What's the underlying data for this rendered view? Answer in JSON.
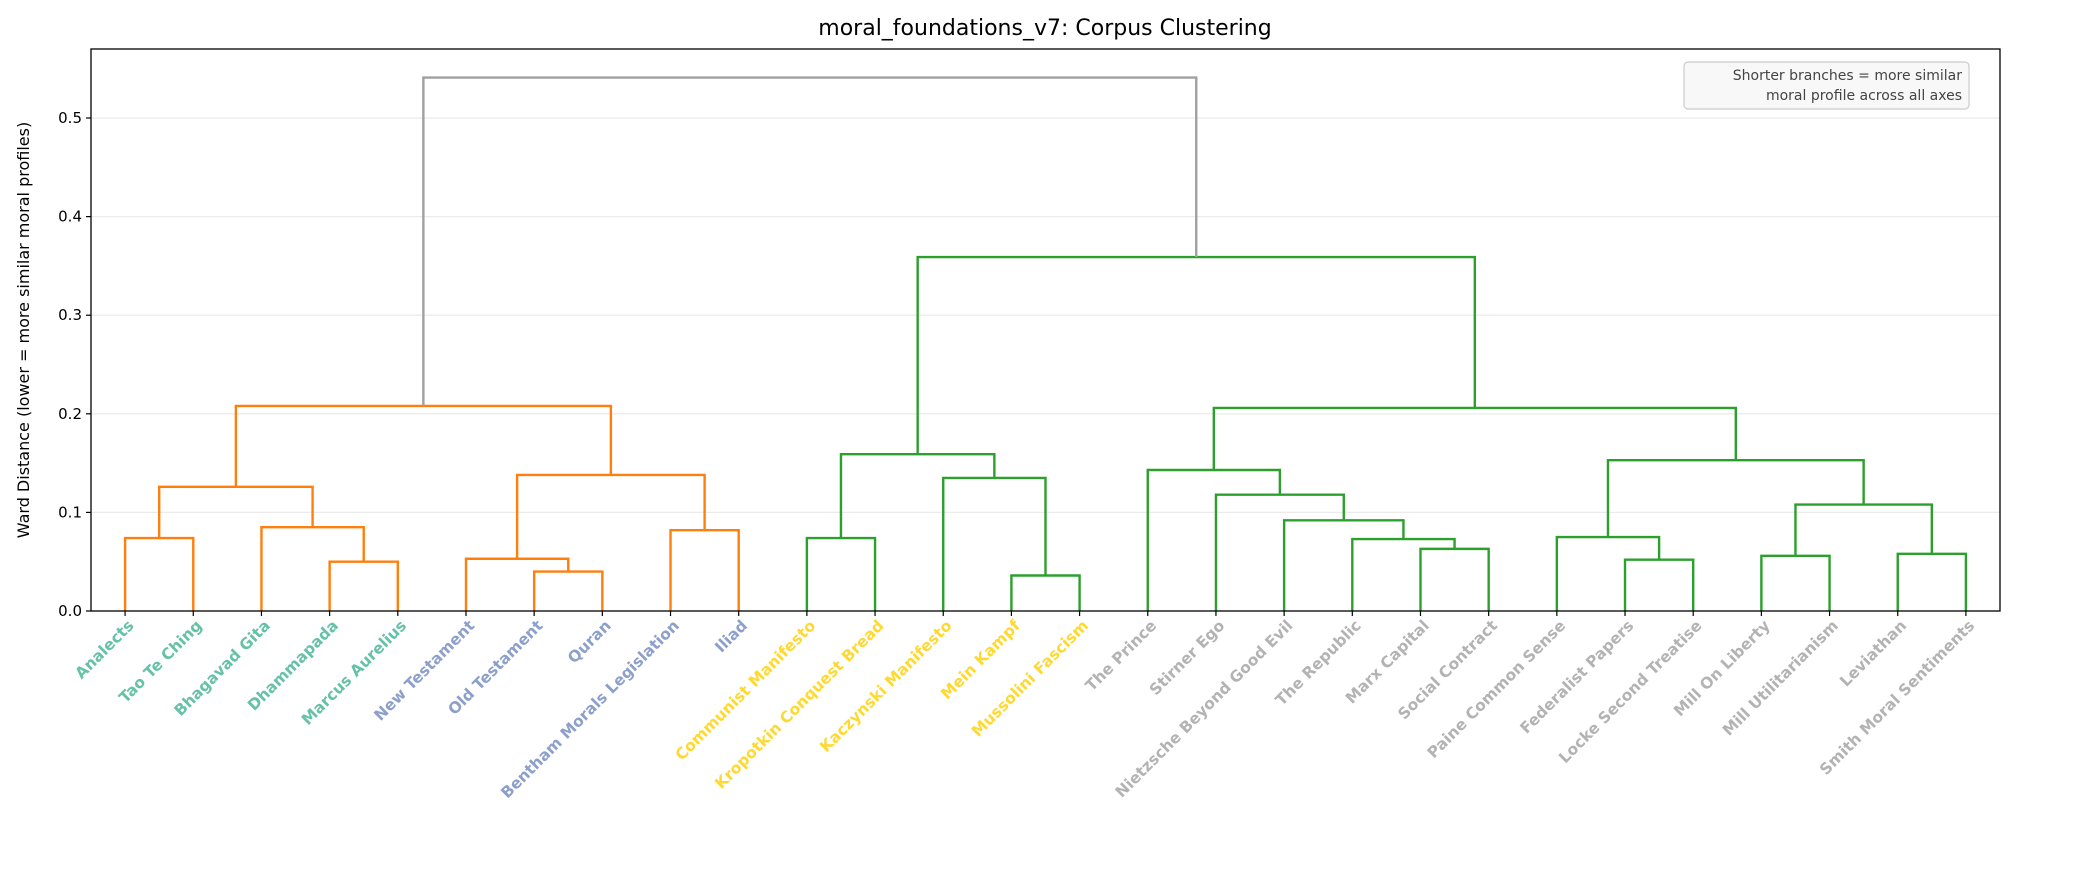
{
  "chart_data": {
    "type": "dendrogram",
    "title": "moral_foundations_v7: Corpus Clustering",
    "xlabel": "",
    "ylabel": "Ward Distance (lower = more similar moral profiles)",
    "ylim": [
      0,
      0.57
    ],
    "yticks": [
      "0.0",
      "0.1",
      "0.2",
      "0.3",
      "0.4",
      "0.5"
    ],
    "grid": "horizontal",
    "annotation": {
      "lines": [
        "Shorter branches = more similar",
        "moral profile across all axes"
      ],
      "placement": "top-right"
    },
    "link_colors": {
      "root": "#a0a0a0",
      "cluster_1": "#ff7f0e",
      "cluster_2": "#2ca02c"
    },
    "leaves": [
      {
        "label": "Analects",
        "color": "#66c2a5"
      },
      {
        "label": "Tao Te Ching",
        "color": "#66c2a5"
      },
      {
        "label": "Bhagavad Gita",
        "color": "#66c2a5"
      },
      {
        "label": "Dhammapada",
        "color": "#66c2a5"
      },
      {
        "label": "Marcus Aurelius",
        "color": "#66c2a5"
      },
      {
        "label": "New Testament",
        "color": "#8da0cb"
      },
      {
        "label": "Old Testament",
        "color": "#8da0cb"
      },
      {
        "label": "Quran",
        "color": "#8da0cb"
      },
      {
        "label": "Bentham Morals Legislation",
        "color": "#8da0cb"
      },
      {
        "label": "Iliad",
        "color": "#8da0cb"
      },
      {
        "label": "Communist Manifesto",
        "color": "#ffd92f"
      },
      {
        "label": "Kropotkin Conquest Bread",
        "color": "#ffd92f"
      },
      {
        "label": "Kaczynski Manifesto",
        "color": "#ffd92f"
      },
      {
        "label": "Mein Kampf",
        "color": "#ffd92f"
      },
      {
        "label": "Mussolini Fascism",
        "color": "#ffd92f"
      },
      {
        "label": "The Prince",
        "color": "#b3b3b3"
      },
      {
        "label": "Stirner Ego",
        "color": "#b3b3b3"
      },
      {
        "label": "Nietzsche Beyond Good Evil",
        "color": "#b3b3b3"
      },
      {
        "label": "The Republic",
        "color": "#b3b3b3"
      },
      {
        "label": "Marx Capital",
        "color": "#b3b3b3"
      },
      {
        "label": "Social Contract",
        "color": "#b3b3b3"
      },
      {
        "label": "Paine Common Sense",
        "color": "#b3b3b3"
      },
      {
        "label": "Federalist Papers",
        "color": "#b3b3b3"
      },
      {
        "label": "Locke Second Treatise",
        "color": "#b3b3b3"
      },
      {
        "label": "Mill On Liberty",
        "color": "#b3b3b3"
      },
      {
        "label": "Mill Utilitarianism",
        "color": "#b3b3b3"
      },
      {
        "label": "Leviathan",
        "color": "#b3b3b3"
      },
      {
        "label": "Smith Moral Sentiments",
        "color": "#b3b3b3"
      }
    ],
    "tree": {
      "h": 0.541,
      "color": "root",
      "children": [
        {
          "h": 0.208,
          "color": "cluster_1",
          "children": [
            {
              "h": 0.126,
              "color": "cluster_1",
              "children": [
                {
                  "h": 0.074,
                  "color": "cluster_1",
                  "children": [
                    0,
                    1
                  ]
                },
                {
                  "h": 0.085,
                  "color": "cluster_1",
                  "children": [
                    2,
                    {
                      "h": 0.05,
                      "color": "cluster_1",
                      "children": [
                        3,
                        4
                      ]
                    }
                  ]
                }
              ]
            },
            {
              "h": 0.138,
              "color": "cluster_1",
              "children": [
                {
                  "h": 0.053,
                  "color": "cluster_1",
                  "children": [
                    5,
                    {
                      "h": 0.04,
                      "color": "cluster_1",
                      "children": [
                        6,
                        7
                      ]
                    }
                  ]
                },
                {
                  "h": 0.082,
                  "color": "cluster_1",
                  "children": [
                    8,
                    9
                  ]
                }
              ]
            }
          ]
        },
        {
          "h": 0.359,
          "color": "cluster_2",
          "children": [
            {
              "h": 0.159,
              "color": "cluster_2",
              "children": [
                {
                  "h": 0.074,
                  "color": "cluster_2",
                  "children": [
                    10,
                    11
                  ]
                },
                {
                  "h": 0.135,
                  "color": "cluster_2",
                  "children": [
                    12,
                    {
                      "h": 0.036,
                      "color": "cluster_2",
                      "children": [
                        13,
                        14
                      ]
                    }
                  ]
                }
              ]
            },
            {
              "h": 0.206,
              "color": "cluster_2",
              "children": [
                {
                  "h": 0.143,
                  "color": "cluster_2",
                  "children": [
                    15,
                    {
                      "h": 0.118,
                      "color": "cluster_2",
                      "children": [
                        16,
                        {
                          "h": 0.092,
                          "color": "cluster_2",
                          "children": [
                            17,
                            {
                              "h": 0.073,
                              "color": "cluster_2",
                              "children": [
                                18,
                                {
                                  "h": 0.063,
                                  "color": "cluster_2",
                                  "children": [
                                    19,
                                    20
                                  ]
                                }
                              ]
                            }
                          ]
                        }
                      ]
                    }
                  ]
                },
                {
                  "h": 0.153,
                  "color": "cluster_2",
                  "children": [
                    {
                      "h": 0.075,
                      "color": "cluster_2",
                      "children": [
                        21,
                        {
                          "h": 0.052,
                          "color": "cluster_2",
                          "children": [
                            22,
                            23
                          ]
                        }
                      ]
                    },
                    {
                      "h": 0.108,
                      "color": "cluster_2",
                      "children": [
                        {
                          "h": 0.056,
                          "color": "cluster_2",
                          "children": [
                            24,
                            25
                          ]
                        },
                        {
                          "h": 0.058,
                          "color": "cluster_2",
                          "children": [
                            26,
                            27
                          ]
                        }
                      ]
                    }
                  ]
                }
              ]
            }
          ]
        }
      ]
    }
  }
}
